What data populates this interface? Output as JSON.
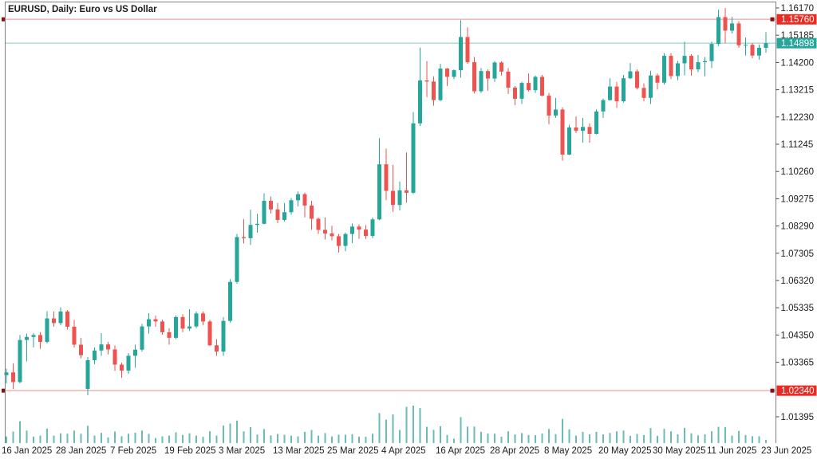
{
  "window": {
    "title": "EURUSD, Daily:  Euro vs US Dollar"
  },
  "colors": {
    "background": "#ffffff",
    "bull": "#26a69a",
    "bear": "#ef5350",
    "volume": "#6bbcb4",
    "level_line": "#f5abab",
    "level_marker": "#7e1416",
    "current_line": "#8ed1c9",
    "badge_level": "#ea2b23",
    "badge_current": "#26a69a",
    "badge_text": "#ffffff",
    "frame": "#7f7f7f",
    "text": "#1b1b1b"
  },
  "levels": {
    "upper": {
      "price": 1.1576,
      "label": "1.15760"
    },
    "current": {
      "price": 1.14898,
      "label": "1.14898"
    },
    "lower": {
      "price": 1.0234,
      "label": "1.02340"
    }
  },
  "chart_data": {
    "type": "candlestick",
    "symbol": "EURUSD",
    "timeframe": "Daily",
    "description": "Euro vs US Dollar",
    "title": "EURUSD, Daily:  Euro vs US Dollar",
    "legend_position": "none",
    "grid": false,
    "ylim": [
      1.01395,
      1.1617
    ],
    "y_tick_step": 0.00985,
    "y_ticks": [
      "1.16170",
      "1.15185",
      "1.14200",
      "1.13215",
      "1.12230",
      "1.11245",
      "1.10260",
      "1.09275",
      "1.08290",
      "1.07305",
      "1.06320",
      "1.05335",
      "1.04350",
      "1.03365",
      "1.01395"
    ],
    "y_tick_values": [
      1.1617,
      1.15185,
      1.142,
      1.13215,
      1.1223,
      1.11245,
      1.1026,
      1.09275,
      1.0829,
      1.07305,
      1.0632,
      1.05335,
      1.0435,
      1.03365,
      1.01395
    ],
    "x_tick_labels": [
      {
        "index": 0,
        "label": "16 Jan 2025"
      },
      {
        "index": 8,
        "label": "28 Jan 2025"
      },
      {
        "index": 16,
        "label": "7 Feb 2025"
      },
      {
        "index": 24,
        "label": "19 Feb 2025"
      },
      {
        "index": 32,
        "label": "3 Mar 2025"
      },
      {
        "index": 40,
        "label": "13 Mar 2025"
      },
      {
        "index": 48,
        "label": "25 Mar 2025"
      },
      {
        "index": 56,
        "label": "4 Apr 2025"
      },
      {
        "index": 64,
        "label": "16 Apr 2025"
      },
      {
        "index": 72,
        "label": "28 Apr 2025"
      },
      {
        "index": 80,
        "label": "8 May 2025"
      },
      {
        "index": 88,
        "label": "20 May 2025"
      },
      {
        "index": 96,
        "label": "30 May 2025"
      },
      {
        "index": 104,
        "label": "11 Jun 2025"
      },
      {
        "index": 112,
        "label": "23 Jun 2025"
      }
    ],
    "candles": [
      [
        1.029,
        1.0313,
        1.026,
        1.03
      ],
      [
        1.03,
        1.0332,
        1.024,
        1.0265
      ],
      [
        1.0265,
        1.0435,
        1.026,
        1.0417
      ],
      [
        1.0417,
        1.044,
        1.034,
        1.0428
      ],
      [
        1.0428,
        1.0442,
        1.039,
        1.0435
      ],
      [
        1.0435,
        1.0445,
        1.0385,
        1.041
      ],
      [
        1.041,
        1.0521,
        1.0405,
        1.0495
      ],
      [
        1.0495,
        1.052,
        1.0465,
        1.0478
      ],
      [
        1.0478,
        1.0535,
        1.047,
        1.052
      ],
      [
        1.052,
        1.0525,
        1.0455,
        1.0465
      ],
      [
        1.0465,
        1.049,
        1.039,
        1.04
      ],
      [
        1.04,
        1.0425,
        1.035,
        1.0362
      ],
      [
        1.024,
        1.0355,
        1.0217,
        1.0344
      ],
      [
        1.0344,
        1.039,
        1.033,
        1.0379
      ],
      [
        1.0379,
        1.0442,
        1.036,
        1.0401
      ],
      [
        1.0401,
        1.041,
        1.0365,
        1.0383
      ],
      [
        1.0383,
        1.0398,
        1.0305,
        1.0328
      ],
      [
        1.0328,
        1.0335,
        1.028,
        1.0306
      ],
      [
        1.0306,
        1.037,
        1.0295,
        1.036
      ],
      [
        1.036,
        1.04,
        1.0317,
        1.0382
      ],
      [
        1.0382,
        1.0475,
        1.0375,
        1.0466
      ],
      [
        1.0466,
        1.0514,
        1.044,
        1.0492
      ],
      [
        1.0492,
        1.0505,
        1.0465,
        1.0484
      ],
      [
        1.0484,
        1.049,
        1.0436,
        1.0445
      ],
      [
        1.0445,
        1.046,
        1.04,
        1.0425
      ],
      [
        1.0425,
        1.0506,
        1.042,
        1.05
      ],
      [
        1.05,
        1.051,
        1.0445,
        1.0458
      ],
      [
        1.0458,
        1.0528,
        1.045,
        1.0466
      ],
      [
        1.0466,
        1.052,
        1.046,
        1.0513
      ],
      [
        1.0513,
        1.052,
        1.047,
        1.0484
      ],
      [
        1.0484,
        1.049,
        1.0395,
        1.0398
      ],
      [
        1.0398,
        1.042,
        1.036,
        1.0375
      ],
      [
        1.0375,
        1.05,
        1.036,
        1.0486
      ],
      [
        1.0486,
        1.0637,
        1.048,
        1.0627
      ],
      [
        1.0627,
        1.08,
        1.062,
        1.0789
      ],
      [
        1.0789,
        1.0854,
        1.0766,
        1.0785
      ],
      [
        1.0785,
        1.0888,
        1.076,
        1.0833
      ],
      [
        1.0833,
        1.0873,
        1.0805,
        1.0837
      ],
      [
        1.0837,
        1.0947,
        1.0835,
        1.092
      ],
      [
        1.092,
        1.0936,
        1.0874,
        1.0889
      ],
      [
        1.0889,
        1.0912,
        1.0839,
        1.0851
      ],
      [
        1.0851,
        1.0912,
        1.0845,
        1.0879
      ],
      [
        1.0879,
        1.093,
        1.087,
        1.0922
      ],
      [
        1.0922,
        1.0954,
        1.09,
        1.0944
      ],
      [
        1.0944,
        1.095,
        1.086,
        1.0903
      ],
      [
        1.0903,
        1.092,
        1.0815,
        1.0855
      ],
      [
        1.0855,
        1.086,
        1.08,
        1.0815
      ],
      [
        1.0815,
        1.086,
        1.078,
        1.0802
      ],
      [
        1.0802,
        1.083,
        1.0777,
        1.0792
      ],
      [
        1.0792,
        1.08,
        1.0733,
        1.0757
      ],
      [
        1.0757,
        1.0805,
        1.0738,
        1.08
      ],
      [
        1.08,
        1.0838,
        1.0767,
        1.0827
      ],
      [
        1.0827,
        1.0835,
        1.0783,
        1.0816
      ],
      [
        1.0816,
        1.0832,
        1.0782,
        1.0793
      ],
      [
        1.0793,
        1.086,
        1.0785,
        1.0853
      ],
      [
        1.0853,
        1.1147,
        1.085,
        1.1052
      ],
      [
        1.1052,
        1.1109,
        1.0922,
        1.0956
      ],
      [
        1.0956,
        1.105,
        1.088,
        1.0905
      ],
      [
        1.0905,
        1.099,
        1.0885,
        1.0958
      ],
      [
        1.0958,
        1.1095,
        1.0913,
        1.0949
      ],
      [
        1.0949,
        1.1241,
        1.0945,
        1.12
      ],
      [
        1.12,
        1.1474,
        1.119,
        1.1355
      ],
      [
        1.1355,
        1.1425,
        1.1295,
        1.1351
      ],
      [
        1.1351,
        1.137,
        1.1264,
        1.1284
      ],
      [
        1.1284,
        1.1415,
        1.128,
        1.1398
      ],
      [
        1.1398,
        1.14,
        1.1335,
        1.1368
      ],
      [
        1.1368,
        1.1395,
        1.136,
        1.1392
      ],
      [
        1.1392,
        1.1573,
        1.1365,
        1.1512
      ],
      [
        1.1512,
        1.1547,
        1.1415,
        1.1421
      ],
      [
        1.1421,
        1.144,
        1.1308,
        1.1316
      ],
      [
        1.1316,
        1.14,
        1.131,
        1.1389
      ],
      [
        1.1389,
        1.1395,
        1.1318,
        1.1362
      ],
      [
        1.1362,
        1.1425,
        1.135,
        1.142
      ],
      [
        1.142,
        1.1424,
        1.1373,
        1.1387
      ],
      [
        1.1387,
        1.14,
        1.1306,
        1.1329
      ],
      [
        1.1329,
        1.1335,
        1.1266,
        1.1289
      ],
      [
        1.1289,
        1.135,
        1.127,
        1.1346
      ],
      [
        1.1346,
        1.138,
        1.1315,
        1.132
      ],
      [
        1.132,
        1.1373,
        1.131,
        1.1368
      ],
      [
        1.1368,
        1.1375,
        1.1298,
        1.13
      ],
      [
        1.13,
        1.131,
        1.1197,
        1.1228
      ],
      [
        1.1228,
        1.1292,
        1.122,
        1.125
      ],
      [
        1.125,
        1.1258,
        1.1065,
        1.1087
      ],
      [
        1.1087,
        1.1195,
        1.1085,
        1.1185
      ],
      [
        1.1185,
        1.1225,
        1.1165,
        1.1173
      ],
      [
        1.1173,
        1.122,
        1.113,
        1.1187
      ],
      [
        1.1187,
        1.12,
        1.113,
        1.1162
      ],
      [
        1.1162,
        1.125,
        1.116,
        1.1243
      ],
      [
        1.1243,
        1.129,
        1.122,
        1.1284
      ],
      [
        1.1284,
        1.1363,
        1.1282,
        1.1333
      ],
      [
        1.1333,
        1.135,
        1.1256,
        1.128
      ],
      [
        1.128,
        1.1375,
        1.1275,
        1.1363
      ],
      [
        1.1363,
        1.1418,
        1.136,
        1.1388
      ],
      [
        1.1388,
        1.1395,
        1.1322,
        1.1328
      ],
      [
        1.1328,
        1.1345,
        1.128,
        1.1292
      ],
      [
        1.1292,
        1.139,
        1.127,
        1.1373
      ],
      [
        1.1373,
        1.138,
        1.1322,
        1.1347
      ],
      [
        1.1347,
        1.1454,
        1.134,
        1.1444
      ],
      [
        1.1444,
        1.1454,
        1.136,
        1.1371
      ],
      [
        1.1371,
        1.1426,
        1.1356,
        1.1417
      ],
      [
        1.1417,
        1.1495,
        1.1373,
        1.1444
      ],
      [
        1.1444,
        1.145,
        1.1372,
        1.1395
      ],
      [
        1.1395,
        1.1447,
        1.1385,
        1.1421
      ],
      [
        1.1421,
        1.144,
        1.137,
        1.1425
      ],
      [
        1.1425,
        1.1495,
        1.14,
        1.1487
      ],
      [
        1.1487,
        1.161,
        1.148,
        1.1584
      ],
      [
        1.1584,
        1.1617,
        1.149,
        1.1535
      ],
      [
        1.1535,
        1.1585,
        1.1525,
        1.1561
      ],
      [
        1.1561,
        1.157,
        1.1473,
        1.1482
      ],
      [
        1.1482,
        1.151,
        1.1445,
        1.1484
      ],
      [
        1.1484,
        1.149,
        1.1435,
        1.1445
      ],
      [
        1.1445,
        1.1485,
        1.143,
        1.1473
      ],
      [
        1.1473,
        1.153,
        1.1455,
        1.14898
      ]
    ],
    "tick_volume": [
      53,
      92,
      175,
      100,
      52,
      60,
      116,
      60,
      78,
      75,
      100,
      75,
      138,
      60,
      82,
      45,
      93,
      55,
      75,
      83,
      100,
      74,
      40,
      54,
      60,
      86,
      65,
      78,
      60,
      50,
      95,
      60,
      140,
      157,
      180,
      94,
      128,
      68,
      112,
      62,
      73,
      67,
      60,
      54,
      90,
      105,
      60,
      80,
      53,
      67,
      67,
      71,
      52,
      50,
      75,
      240,
      187,
      230,
      105,
      290,
      300,
      280,
      130,
      106,
      135,
      65,
      35,
      208,
      132,
      132,
      90,
      77,
      75,
      51,
      94,
      69,
      80,
      65,
      63,
      77,
      113,
      72,
      193,
      110,
      60,
      90,
      70,
      90,
      70,
      81,
      94,
      100,
      58,
      73,
      65,
      120,
      58,
      114,
      94,
      70,
      122,
      78,
      62,
      70,
      95,
      130,
      127,
      60,
      97,
      65,
      55,
      55,
      25
    ]
  }
}
